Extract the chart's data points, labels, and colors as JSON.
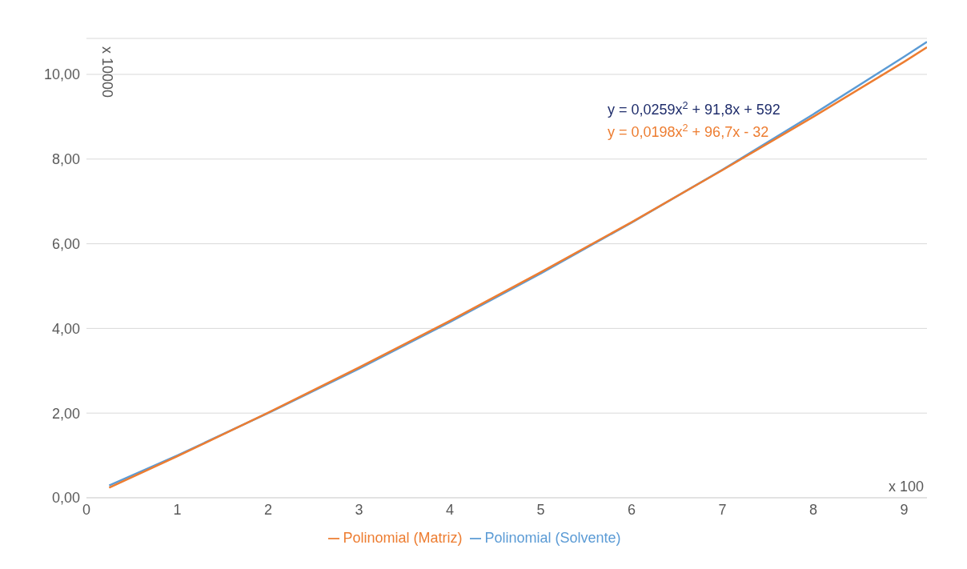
{
  "chart_data": {
    "type": "line",
    "xlabel": "x 100",
    "ylabel": "x 10000",
    "x": [
      0.25,
      1,
      2,
      3,
      4,
      5,
      6,
      7,
      8,
      9,
      9.25
    ],
    "series": [
      {
        "name": "Polinomial (Solvente)",
        "color": "#5b9bd5",
        "values": [
          0.29,
          1.0,
          2.0,
          3.05,
          4.15,
          5.3,
          6.5,
          7.75,
          9.06,
          10.42,
          10.77
        ]
      },
      {
        "name": "Polinomial (Matriz)",
        "color": "#ed7d31",
        "values": [
          0.24,
          0.98,
          2.01,
          3.08,
          4.18,
          5.33,
          6.51,
          7.74,
          9.0,
          10.3,
          10.64
        ]
      }
    ],
    "annotations": [
      "y = 0,0259x$^{2}$ + 91,8x + 592",
      "y = 0,0198x$^{2}$ + 96,7x - 32"
    ],
    "xlim": [
      0,
      9.25
    ],
    "xticks": [
      0,
      1,
      2,
      3,
      4,
      5,
      6,
      7,
      8,
      9
    ],
    "ylim": [
      0,
      10.85
    ],
    "yticks": [
      {
        "value": 0,
        "label": "0,00"
      },
      {
        "value": 2,
        "label": "2,00"
      },
      {
        "value": 4,
        "label": "4,00"
      },
      {
        "value": 6,
        "label": "6,00"
      },
      {
        "value": 8,
        "label": "8,00"
      },
      {
        "value": 10,
        "label": "10,00"
      }
    ],
    "grid": "y",
    "legend": "bottom",
    "marker": "none",
    "line_style": "solid"
  }
}
